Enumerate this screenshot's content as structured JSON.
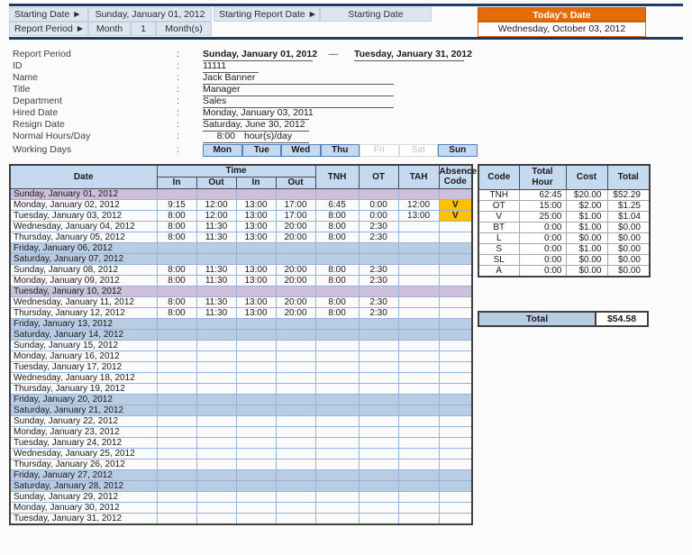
{
  "top_bar": {
    "starting_date_label": "Starting Date ►",
    "starting_date_value": "Sunday, January 01, 2012",
    "starting_report_date_label": "Starting Report Date ►",
    "starting_report_date_value": "Starting Date",
    "report_period_label": "Report Period ►",
    "report_period_unit": "Month",
    "report_period_count": "1",
    "report_period_suffix": "Month(s)",
    "todays_date_label": "Today's Date",
    "todays_date_value": "Wednesday, October 03, 2012"
  },
  "employee": {
    "colon": ":",
    "report_period": {
      "label": "Report Period",
      "from": "Sunday, January 01, 2012",
      "separator": "—",
      "to": "Tuesday, January 31, 2012"
    },
    "fields": [
      {
        "label": "ID",
        "value": "11111",
        "line": "short"
      },
      {
        "label": "Name",
        "value": "Jack Banner",
        "line": "long"
      },
      {
        "label": "Title",
        "value": "Manager",
        "line": "long"
      },
      {
        "label": "Department",
        "value": "Sales",
        "line": "long"
      },
      {
        "label": "Hired Date",
        "value": "Monday, January 03, 2011",
        "line": "med"
      },
      {
        "label": "Resign Date",
        "value": "Saturday, June 30, 2012",
        "line": "med"
      }
    ],
    "normal_hours": {
      "label": "Normal Hours/Day",
      "value": "8:00",
      "suffix": "hour(s)/day"
    },
    "working_days": {
      "label": "Working Days",
      "days": [
        {
          "name": "Mon",
          "active": true
        },
        {
          "name": "Tue",
          "active": true
        },
        {
          "name": "Wed",
          "active": true
        },
        {
          "name": "Thu",
          "active": true
        },
        {
          "name": "Fri",
          "active": false
        },
        {
          "name": "Sat",
          "active": false
        },
        {
          "name": "Sun",
          "active": true
        }
      ]
    }
  },
  "timesheet": {
    "headers": {
      "date": "Date",
      "time": "Time",
      "in1": "In",
      "out1": "Out",
      "in2": "In",
      "out2": "Out",
      "tnh": "TNH",
      "ot": "OT",
      "tah": "TAH",
      "absence": "Absence Code"
    },
    "rows": [
      {
        "date": "Sunday, January 01, 2012",
        "style": "holiday"
      },
      {
        "date": "Monday, January 02, 2012",
        "style": "normal",
        "cells": [
          "9:15",
          "12:00",
          "13:00",
          "17:00",
          "6:45",
          "0:00",
          "12:00",
          "V"
        ]
      },
      {
        "date": "Tuesday, January 03, 2012",
        "style": "normal",
        "cells": [
          "8:00",
          "12:00",
          "13:00",
          "17:00",
          "8:00",
          "0:00",
          "13:00",
          "V"
        ]
      },
      {
        "date": "Wednesday, January 04, 2012",
        "style": "normal",
        "cells": [
          "8:00",
          "11:30",
          "13:00",
          "20:00",
          "8:00",
          "2:30",
          "",
          ""
        ]
      },
      {
        "date": "Thursday, January 05, 2012",
        "style": "normal",
        "cells": [
          "8:00",
          "11:30",
          "13:00",
          "20:00",
          "8:00",
          "2:30",
          "",
          ""
        ]
      },
      {
        "date": "Friday, January 06, 2012",
        "style": "weekend"
      },
      {
        "date": "Saturday, January 07, 2012",
        "style": "weekend"
      },
      {
        "date": "Sunday, January 08, 2012",
        "style": "normal",
        "cells": [
          "8:00",
          "11:30",
          "13:00",
          "20:00",
          "8:00",
          "2:30",
          "",
          ""
        ]
      },
      {
        "date": "Monday, January 09, 2012",
        "style": "normal",
        "cells": [
          "8:00",
          "11:30",
          "13:00",
          "20:00",
          "8:00",
          "2:30",
          "",
          ""
        ]
      },
      {
        "date": "Tuesday, January 10, 2012",
        "style": "holiday"
      },
      {
        "date": "Wednesday, January 11, 2012",
        "style": "normal",
        "cells": [
          "8:00",
          "11:30",
          "13:00",
          "20:00",
          "8:00",
          "2:30",
          "",
          ""
        ]
      },
      {
        "date": "Thursday, January 12, 2012",
        "style": "normal",
        "cells": [
          "8:00",
          "11:30",
          "13:00",
          "20:00",
          "8:00",
          "2:30",
          "",
          ""
        ]
      },
      {
        "date": "Friday, January 13, 2012",
        "style": "weekend"
      },
      {
        "date": "Saturday, January 14, 2012",
        "style": "weekend"
      },
      {
        "date": "Sunday, January 15, 2012",
        "style": "normal"
      },
      {
        "date": "Monday, January 16, 2012",
        "style": "normal"
      },
      {
        "date": "Tuesday, January 17, 2012",
        "style": "normal"
      },
      {
        "date": "Wednesday, January 18, 2012",
        "style": "normal"
      },
      {
        "date": "Thursday, January 19, 2012",
        "style": "normal"
      },
      {
        "date": "Friday, January 20, 2012",
        "style": "weekend"
      },
      {
        "date": "Saturday, January 21, 2012",
        "style": "weekend"
      },
      {
        "date": "Sunday, January 22, 2012",
        "style": "normal"
      },
      {
        "date": "Monday, January 23, 2012",
        "style": "normal"
      },
      {
        "date": "Tuesday, January 24, 2012",
        "style": "normal"
      },
      {
        "date": "Wednesday, January 25, 2012",
        "style": "normal"
      },
      {
        "date": "Thursday, January 26, 2012",
        "style": "normal"
      },
      {
        "date": "Friday, January 27, 2012",
        "style": "weekend"
      },
      {
        "date": "Saturday, January 28, 2012",
        "style": "weekend"
      },
      {
        "date": "Sunday, January 29, 2012",
        "style": "normal"
      },
      {
        "date": "Monday, January 30, 2012",
        "style": "normal"
      },
      {
        "date": "Tuesday, January 31, 2012",
        "style": "normal"
      }
    ]
  },
  "summary": {
    "headers": [
      "Code",
      "Total Hour",
      "Cost",
      "Total"
    ],
    "rows": [
      {
        "code": "TNH",
        "hour": "62:45",
        "cost": "$20.00",
        "total": "$52.29"
      },
      {
        "code": "OT",
        "hour": "15:00",
        "cost": "$2.00",
        "total": "$1.25"
      },
      {
        "code": "V",
        "hour": "25:00",
        "cost": "$1.00",
        "total": "$1.04"
      },
      {
        "code": "BT",
        "hour": "0:00",
        "cost": "$1.00",
        "total": "$0.00"
      },
      {
        "code": "L",
        "hour": "0:00",
        "cost": "$0.00",
        "total": "$0.00"
      },
      {
        "code": "S",
        "hour": "0:00",
        "cost": "$1.00",
        "total": "$0.00"
      },
      {
        "code": "SL",
        "hour": "0:00",
        "cost": "$0.00",
        "total": "$0.00"
      },
      {
        "code": "A",
        "hour": "0:00",
        "cost": "$0.00",
        "total": "$0.00"
      }
    ],
    "total_label": "Total",
    "total_value": "$54.58"
  },
  "colors": {
    "navy_line": "#1F3864",
    "band_cell": "#DCE6F1",
    "table_header": "#C5D9F1",
    "weekend_row": "#B8CCE4",
    "holiday_row": "#CCC0DA",
    "orange": "#E26B0A",
    "absence_bg": "#FFC000",
    "grid": "#95B3D7"
  }
}
